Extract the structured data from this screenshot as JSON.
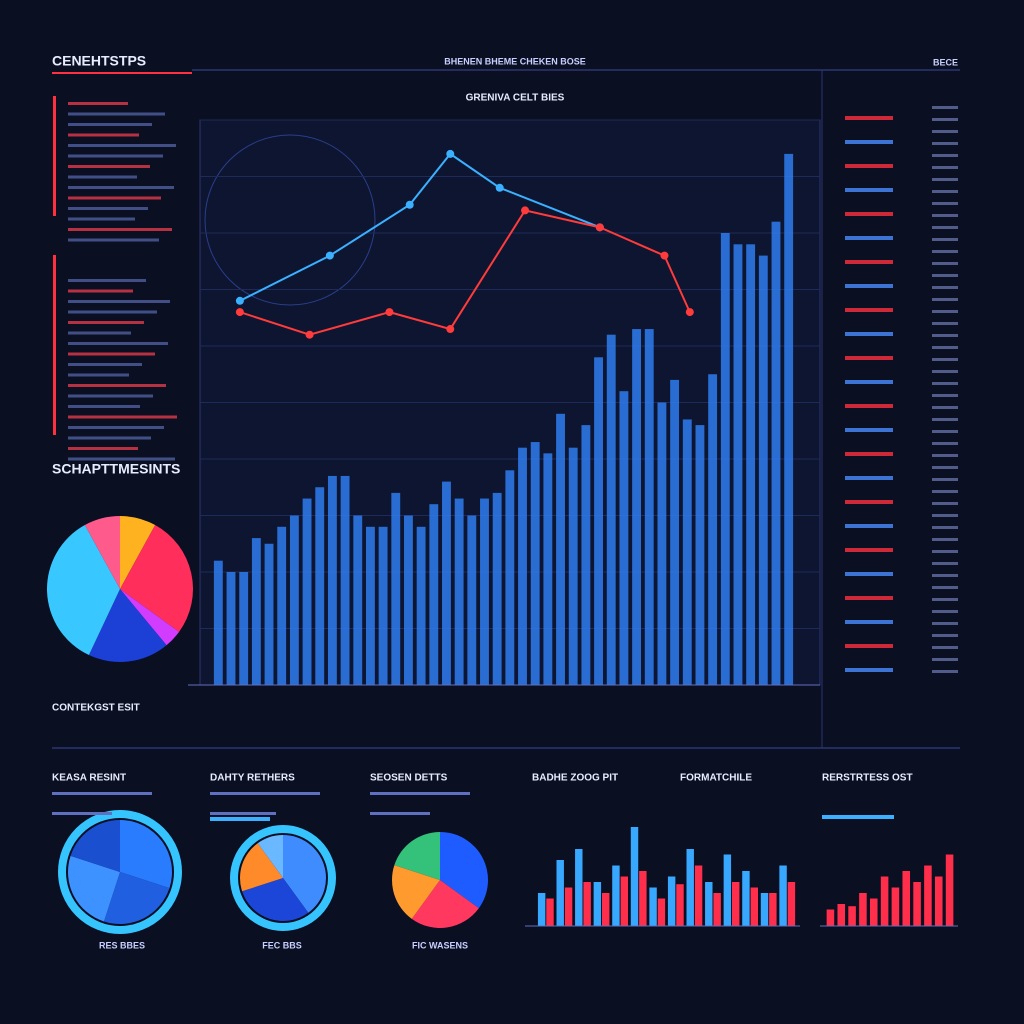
{
  "header": {
    "title": "CENEHTSTPS",
    "top_caption": "BHENEN BHEME CHEKEN BOSE",
    "corner": "BECE"
  },
  "chart_data": [
    {
      "type": "bar",
      "title": "GRENIVA CELT BIES",
      "color": "#2f7cf0",
      "ylim": [
        0,
        100
      ],
      "yticks": [
        0,
        10,
        20,
        30,
        40,
        50,
        60,
        70,
        80,
        90,
        100
      ],
      "grid": true,
      "values": [
        22,
        20,
        20,
        26,
        25,
        28,
        30,
        33,
        35,
        37,
        37,
        30,
        28,
        28,
        34,
        30,
        28,
        32,
        36,
        33,
        30,
        33,
        34,
        38,
        42,
        43,
        41,
        48,
        42,
        46,
        58,
        62,
        52,
        63,
        63,
        50,
        54,
        47,
        46,
        55,
        80,
        78,
        78,
        76,
        82,
        94
      ],
      "xlim": [
        0,
        46
      ],
      "lines": [
        {
          "color": "#3ab0ff",
          "x": [
            2.2,
            9.3,
            15.6,
            18.8,
            22.7,
            30.6
          ],
          "values": [
            68,
            76,
            85,
            94,
            88,
            81
          ]
        },
        {
          "color": "#ff3b3b",
          "x": [
            2.2,
            7.7,
            14,
            18.8,
            24.7,
            30.6,
            35.7,
            37.7
          ],
          "values": [
            66,
            62,
            66,
            63,
            84,
            81,
            76,
            66
          ]
        }
      ]
    },
    {
      "type": "pie",
      "title": "SCHAPTTMESINTS",
      "caption": "CONTEKGST ESIT",
      "values": [
        8,
        27,
        4,
        18,
        35,
        8
      ],
      "colors": [
        "#ffb21f",
        "#ff2e5a",
        "#d13cff",
        "#1c3fd6",
        "#38c8ff",
        "#ff5a8c"
      ]
    },
    {
      "type": "pie",
      "title": "KEASA RESINT",
      "caption": "RES BBES",
      "values": [
        30,
        25,
        25,
        20
      ],
      "colors": [
        "#2a7cff",
        "#1f5fe0",
        "#3d92ff",
        "#1a4fd0"
      ]
    },
    {
      "type": "pie",
      "title": "DAHTY RETHERS",
      "caption": "FEC BBS",
      "values": [
        40,
        30,
        20,
        10
      ],
      "colors": [
        "#3f8cff",
        "#1b46d8",
        "#ff8a2a",
        "#6ab8ff"
      ]
    },
    {
      "type": "pie",
      "title": "SEOSEN DETTS",
      "caption": "FIC WASENS",
      "values": [
        35,
        25,
        20,
        20
      ],
      "colors": [
        "#1f5cff",
        "#ff3860",
        "#ff9a2e",
        "#34c27a"
      ]
    },
    {
      "type": "bar",
      "title": "BADHE ZOOG PIT",
      "annotation": "FORMATCHILE",
      "ylim": [
        0,
        100
      ],
      "series": [
        {
          "color": "#38a8ff",
          "values": [
            30,
            60,
            70,
            40,
            55,
            90,
            35,
            45,
            70,
            40,
            65,
            50,
            30,
            55
          ]
        },
        {
          "color": "#ff2e4a",
          "values": [
            25,
            35,
            40,
            30,
            45,
            50,
            25,
            38,
            55,
            30,
            40,
            35,
            30,
            40
          ]
        }
      ]
    },
    {
      "type": "bar",
      "title": "RERSTRTESS OST",
      "ylim": [
        0,
        100
      ],
      "color": "#ff2e4a",
      "values": [
        15,
        20,
        18,
        30,
        25,
        45,
        35,
        50,
        40,
        55,
        45,
        65
      ]
    }
  ]
}
